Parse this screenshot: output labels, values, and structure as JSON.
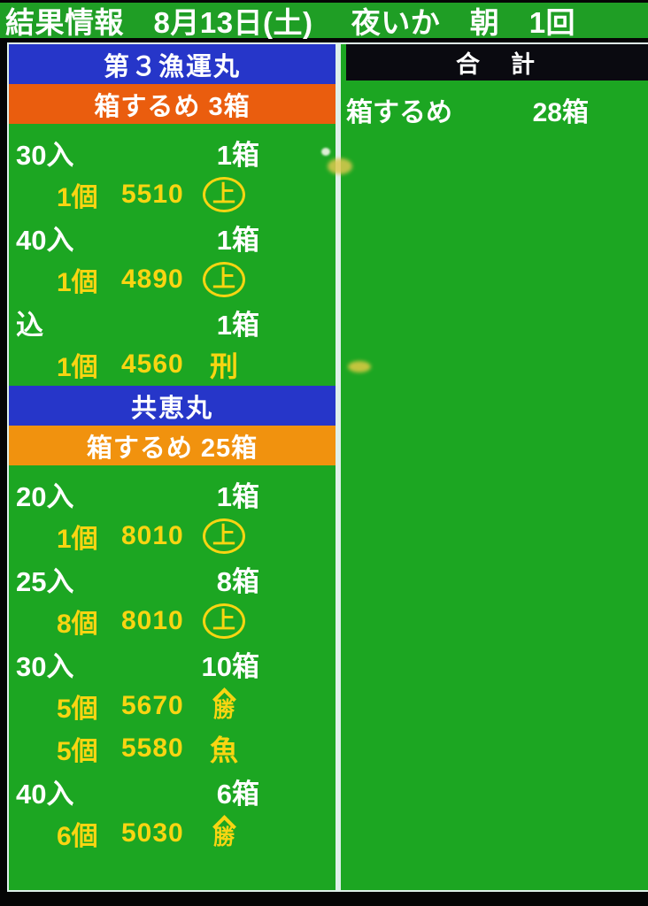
{
  "colors": {
    "green": "#1ca622",
    "title-green": "#1f9e25",
    "blue": "#2636c9",
    "orange-1": "#ea5d0e",
    "orange-2": "#f1920e",
    "yellow": "#f8d512",
    "line": "#dff0ea",
    "header-black": "#0a0a10",
    "text-white": "#ffffff"
  },
  "title_bar": {
    "text": "結果情報　8月13日(土)　 夜いか　朝　1回"
  },
  "left_panel": {
    "sections": [
      {
        "boat_name": "第３漁運丸",
        "product_label": "箱するめ 3箱",
        "product_color": "#ea5d0e",
        "rows": [
          {
            "kind": "size",
            "size": "30入",
            "boxes": "1箱"
          },
          {
            "kind": "detail",
            "count": "1個",
            "price": "5510",
            "mark": {
              "type": "circled",
              "char": "上",
              "name": "circled-ue"
            }
          },
          {
            "kind": "size",
            "size": "40入",
            "boxes": "1箱"
          },
          {
            "kind": "detail",
            "count": "1個",
            "price": "4890",
            "mark": {
              "type": "circled",
              "char": "上",
              "name": "circled-ue"
            }
          },
          {
            "kind": "size",
            "size": "込",
            "boxes": "1箱"
          },
          {
            "kind": "detail",
            "count": "1個",
            "price": "4560",
            "mark": {
              "type": "plain",
              "char": "刑",
              "name": "kei"
            }
          }
        ]
      },
      {
        "boat_name": "共恵丸",
        "product_label": "箱するめ 25箱",
        "product_color": "#f1920e",
        "rows": [
          {
            "kind": "size",
            "size": "20入",
            "boxes": "1箱"
          },
          {
            "kind": "detail",
            "count": "1個",
            "price": "8010",
            "mark": {
              "type": "circled",
              "char": "上",
              "name": "circled-ue"
            }
          },
          {
            "kind": "size",
            "size": "25入",
            "boxes": "8箱"
          },
          {
            "kind": "detail",
            "count": "8個",
            "price": "8010",
            "mark": {
              "type": "circled",
              "char": "上",
              "name": "circled-ue"
            }
          },
          {
            "kind": "size",
            "size": "30入",
            "boxes": "10箱"
          },
          {
            "kind": "detail",
            "count": "5個",
            "price": "5670",
            "mark": {
              "type": "roofed",
              "char": "勝",
              "name": "yama-katsu"
            }
          },
          {
            "kind": "detail",
            "count": "5個",
            "price": "5580",
            "mark": {
              "type": "plain",
              "char": "魚",
              "name": "uo"
            }
          },
          {
            "kind": "size",
            "size": "40入",
            "boxes": "6箱"
          },
          {
            "kind": "detail",
            "count": "6個",
            "price": "5030",
            "mark": {
              "type": "roofed",
              "char": "勝",
              "name": "yama-katsu"
            }
          }
        ]
      }
    ]
  },
  "right_panel": {
    "header": "合　計",
    "rows": [
      {
        "label": "箱するめ",
        "value": "28箱"
      }
    ]
  }
}
